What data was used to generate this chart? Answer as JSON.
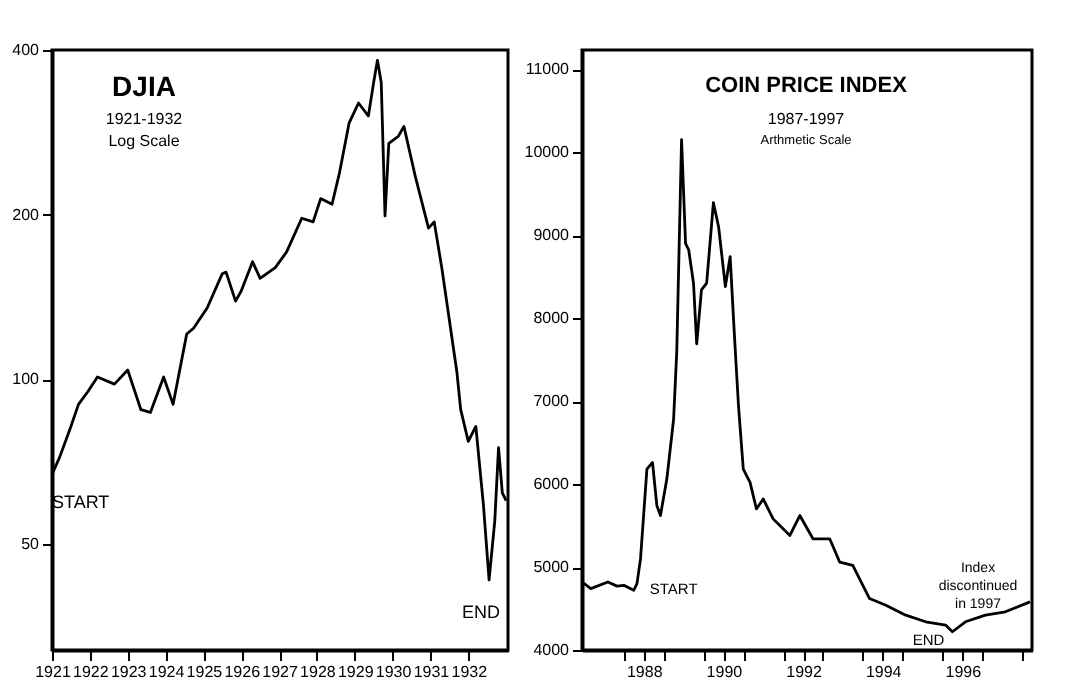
{
  "chart_data": [
    {
      "type": "line",
      "title": "DJIA",
      "subtitle": "1921-1932",
      "log": "y",
      "grid": false,
      "annotations": [
        "Log Scale",
        {
          "text": "START",
          "x": 1921.0,
          "y": 67
        },
        {
          "text": "END",
          "x": 1932.55,
          "y": 43
        }
      ],
      "xlim": [
        1921,
        1933.05
      ],
      "xticks": [
        1921,
        1922,
        1923,
        1924,
        1925,
        1926,
        1927,
        1928,
        1929,
        1930,
        1931,
        1932
      ],
      "ylim": [
        32,
        400
      ],
      "yticks": [
        50,
        100,
        200,
        400
      ],
      "series": [
        {
          "color": "#000000",
          "x": [
            1921.0,
            1921.2,
            1921.5,
            1921.7,
            1921.95,
            1922.2,
            1922.65,
            1923.0,
            1923.35,
            1923.6,
            1923.95,
            1924.2,
            1924.56,
            1924.74,
            1925.1,
            1925.5,
            1925.6,
            1925.85,
            1926.0,
            1926.3,
            1926.5,
            1926.9,
            1927.2,
            1927.6,
            1927.9,
            1928.1,
            1928.4,
            1928.6,
            1928.85,
            1929.1,
            1929.36,
            1929.5,
            1929.6,
            1929.7,
            1929.8,
            1929.9,
            1930.15,
            1930.3,
            1930.6,
            1930.95,
            1931.1,
            1931.3,
            1931.7,
            1931.8,
            1932.0,
            1932.2,
            1932.4,
            1932.55,
            1932.7,
            1932.8,
            1932.9,
            1933.0
          ],
          "values": [
            67,
            72,
            82,
            90,
            95,
            101,
            98,
            104,
            88,
            87,
            101,
            90,
            121,
            124,
            135,
            156,
            157,
            139,
            145,
            164,
            153,
            160,
            171,
            197,
            194,
            214,
            209,
            239,
            294,
            320,
            303,
            349,
            383,
            349,
            199,
            270,
            278,
            290,
            235,
            189,
            194,
            160,
            103,
            88,
            77,
            82,
            59,
            43,
            55,
            75,
            62,
            60
          ]
        }
      ]
    },
    {
      "type": "line",
      "title": "COIN PRICE INDEX",
      "subtitle": "1987-1997",
      "grid": false,
      "annotations": [
        "Arthmetic Scale",
        {
          "text": "START",
          "x": 1988.25,
          "y": 4720
        },
        {
          "text": "END",
          "x": 1996.25,
          "y": 4224
        },
        {
          "text": "Index\ndiscontinued\nin 1997",
          "x": 1998.2,
          "y": 4584
        }
      ],
      "xlim": [
        1986.95,
        1998.25
      ],
      "xticks": [
        {
          "value": 1988,
          "label": null
        },
        {
          "value": 1988.5,
          "label": "1988"
        },
        {
          "value": 1989,
          "label": null
        },
        {
          "value": 1990,
          "label": null
        },
        {
          "value": 1990.5,
          "label": "1990"
        },
        {
          "value": 1991,
          "label": null
        },
        {
          "value": 1992,
          "label": null
        },
        {
          "value": 1992.5,
          "label": "1992"
        },
        {
          "value": 1993,
          "label": null
        },
        {
          "value": 1994,
          "label": null
        },
        {
          "value": 1994.5,
          "label": "1994"
        },
        {
          "value": 1995,
          "label": null
        },
        {
          "value": 1996,
          "label": null
        },
        {
          "value": 1996.5,
          "label": "1996"
        },
        {
          "value": 1997,
          "label": null
        },
        {
          "value": 1998,
          "label": null
        }
      ],
      "ylim": [
        4000,
        11230
      ],
      "yticks": [
        4000,
        5000,
        6000,
        7000,
        8000,
        9000,
        10000,
        11000
      ],
      "series": [
        {
          "color": "#000000",
          "x": [
            1986.95,
            1987.17,
            1987.6,
            1987.83,
            1988.0,
            1988.25,
            1988.33,
            1988.42,
            1988.58,
            1988.72,
            1988.83,
            1988.92,
            1989.08,
            1989.25,
            1989.33,
            1989.45,
            1989.55,
            1989.63,
            1989.75,
            1989.83,
            1989.95,
            1990.08,
            1990.25,
            1990.38,
            1990.55,
            1990.67,
            1990.78,
            1990.88,
            1991.0,
            1991.17,
            1991.33,
            1991.5,
            1991.75,
            1992.17,
            1992.42,
            1992.75,
            1993.17,
            1993.42,
            1993.75,
            1994.17,
            1994.58,
            1995.08,
            1995.58,
            1996.08,
            1996.25,
            1996.58,
            1997.08,
            1997.58,
            1998.2
          ],
          "values": [
            4820,
            4740,
            4820,
            4770,
            4780,
            4720,
            4800,
            5100,
            6180,
            6260,
            5740,
            5620,
            6060,
            6780,
            7600,
            10150,
            8900,
            8820,
            8420,
            7690,
            8340,
            8420,
            9390,
            9100,
            8380,
            8740,
            7770,
            6940,
            6180,
            6020,
            5700,
            5820,
            5580,
            5380,
            5620,
            5340,
            5340,
            5060,
            5020,
            4620,
            4540,
            4420,
            4340,
            4300,
            4220,
            4340,
            4420,
            4460,
            4580
          ]
        }
      ]
    }
  ]
}
